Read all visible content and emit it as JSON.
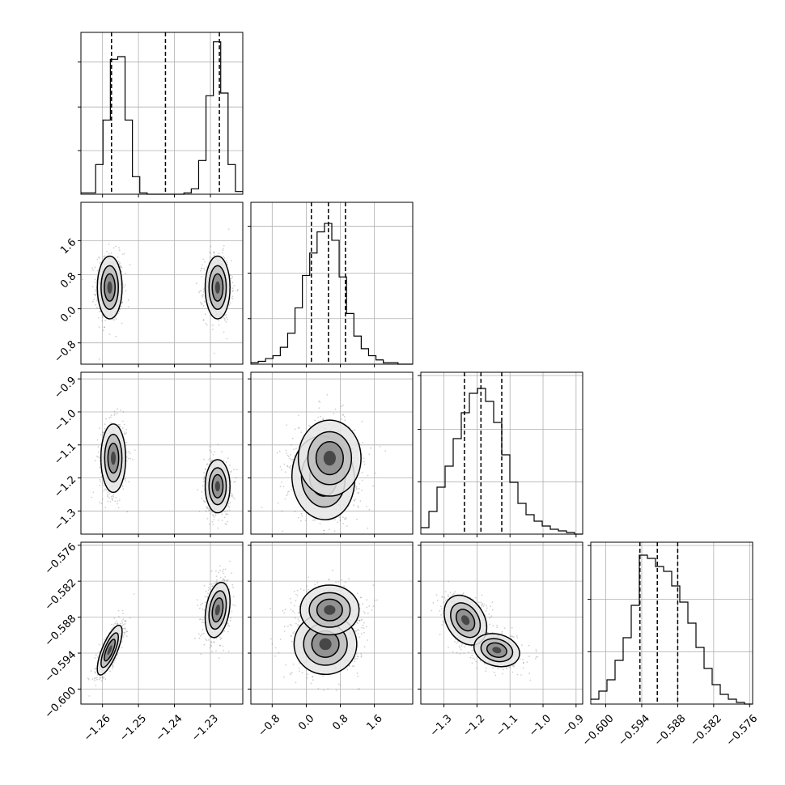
{
  "chart_data": {
    "type": "corner",
    "grid": true,
    "parameters": [
      {
        "range": [
          -1.266,
          -1.221
        ],
        "ticks": [
          -1.26,
          -1.25,
          -1.24,
          -1.23
        ],
        "tick_labels": [
          "−1.26",
          "−1.25",
          "−1.24",
          "−1.23"
        ],
        "quantiles": [
          -1.2575,
          -1.2425,
          -1.2275
        ]
      },
      {
        "range": [
          -1.3,
          2.5
        ],
        "ticks": [
          -0.8,
          0.0,
          0.8,
          1.6
        ],
        "tick_labels": [
          "−0.8",
          "0.0",
          "0.8",
          "1.6"
        ],
        "quantiles": [
          0.12,
          0.52,
          0.92
        ]
      },
      {
        "range": [
          -1.37,
          -0.88
        ],
        "ticks": [
          -1.3,
          -1.2,
          -1.1,
          -1.0,
          -0.9
        ],
        "tick_labels": [
          "−1.3",
          "−1.2",
          "−1.1",
          "−1.0",
          "−0.9"
        ],
        "quantiles": [
          -1.238,
          -1.188,
          -1.125
        ]
      },
      {
        "range": [
          -0.6025,
          -0.5755
        ],
        "ticks": [
          -0.6,
          -0.594,
          -0.588,
          -0.582,
          -0.576
        ],
        "tick_labels": [
          "−0.600",
          "−0.594",
          "−0.588",
          "−0.582",
          "−0.576"
        ],
        "quantiles": [
          -0.5943,
          -0.5914,
          -0.588
        ]
      }
    ],
    "histograms": [
      {
        "values": [
          0.01,
          0.01,
          0.22,
          0.55,
          1.0,
          1.02,
          0.55,
          0.13,
          0.01,
          0.0,
          0.0,
          0.0,
          0.0,
          0.0,
          0.01,
          0.04,
          0.25,
          0.73,
          1.13,
          0.75,
          0.22,
          0.02
        ],
        "max": 1.2
      },
      {
        "values": [
          0.01,
          0.02,
          0.04,
          0.06,
          0.12,
          0.22,
          0.4,
          0.63,
          0.79,
          0.94,
          1.0,
          0.88,
          0.62,
          0.36,
          0.2,
          0.11,
          0.06,
          0.03,
          0.01,
          0.01,
          0.0,
          0.0
        ],
        "max": 1.15
      },
      {
        "values": [
          0.04,
          0.14,
          0.29,
          0.42,
          0.59,
          0.75,
          0.87,
          0.9,
          0.82,
          0.69,
          0.49,
          0.32,
          0.19,
          0.12,
          0.08,
          0.05,
          0.03,
          0.02,
          0.01,
          0.0
        ],
        "max": 1.0
      },
      {
        "values": [
          0.03,
          0.08,
          0.15,
          0.27,
          0.41,
          0.61,
          0.92,
          0.9,
          0.85,
          0.82,
          0.73,
          0.63,
          0.5,
          0.35,
          0.22,
          0.12,
          0.06,
          0.03,
          0.01,
          0.0
        ],
        "max": 1.0
      }
    ],
    "joint_modes": [
      {
        "pair": [
          0,
          1
        ],
        "modes": [
          {
            "cx": -1.258,
            "cy": 0.5,
            "sx": 0.0015,
            "sy": 0.32,
            "rho": 0.0
          },
          {
            "cx": -1.228,
            "cy": 0.5,
            "sx": 0.0015,
            "sy": 0.32,
            "rho": 0.0
          }
        ]
      },
      {
        "pair": [
          0,
          2
        ],
        "modes": [
          {
            "cx": -1.257,
            "cy": -1.14,
            "sx": 0.0015,
            "sy": 0.045,
            "rho": 0.0
          },
          {
            "cx": -1.228,
            "cy": -1.225,
            "sx": 0.0015,
            "sy": 0.035,
            "rho": 0.0
          }
        ]
      },
      {
        "pair": [
          0,
          3
        ],
        "modes": [
          {
            "cx": -1.258,
            "cy": -0.5935,
            "sx": 0.0015,
            "sy": 0.0018,
            "rho": 0.75
          },
          {
            "cx": -1.228,
            "cy": -0.5868,
            "sx": 0.0015,
            "sy": 0.002,
            "rho": 0.3
          }
        ]
      },
      {
        "pair": [
          1,
          2
        ],
        "modes": [
          {
            "cx": 0.4,
            "cy": -1.2,
            "sx": 0.32,
            "sy": 0.055,
            "rho": -0.05
          },
          {
            "cx": 0.55,
            "cy": -1.14,
            "sx": 0.32,
            "sy": 0.05,
            "rho": 0.0
          }
        ]
      },
      {
        "pair": [
          1,
          3
        ],
        "modes": [
          {
            "cx": 0.45,
            "cy": -0.5925,
            "sx": 0.32,
            "sy": 0.0022,
            "rho": 0.0
          },
          {
            "cx": 0.55,
            "cy": -0.5868,
            "sx": 0.3,
            "sy": 0.0018,
            "rho": 0.0
          }
        ]
      },
      {
        "pair": [
          2,
          3
        ],
        "modes": [
          {
            "cx": -1.235,
            "cy": -0.5885,
            "sx": 0.028,
            "sy": 0.0018,
            "rho": -0.3
          },
          {
            "cx": -1.14,
            "cy": -0.5935,
            "sx": 0.03,
            "sy": 0.0012,
            "rho": -0.2
          }
        ]
      }
    ]
  }
}
